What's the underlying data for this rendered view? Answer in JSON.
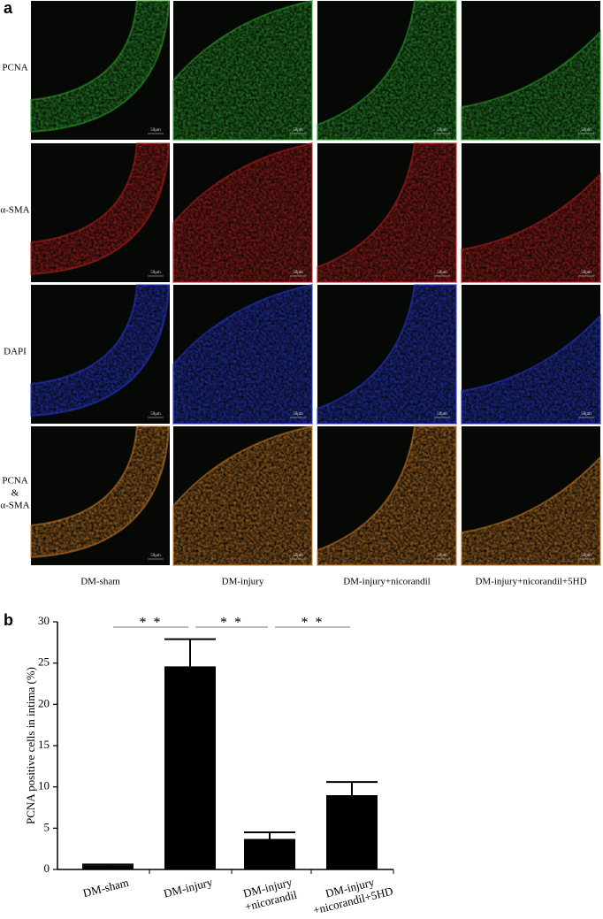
{
  "panel_a": {
    "label": "a",
    "rows": [
      [
        "PCNA"
      ],
      [
        "α-SMA"
      ],
      [
        "DAPI"
      ],
      [
        "PCNA",
        "&",
        "α-SMA"
      ]
    ],
    "columns": [
      "DM-sham",
      "DM-injury",
      "DM-injury+nicorandil",
      "DM-injury+nicorandil+5HD"
    ],
    "scale_bar": "50μm"
  },
  "chart_data": {
    "type": "bar",
    "label": "b",
    "ylabel": "PCNA positive cells in intima (%)",
    "categories": [
      [
        "DM-sham"
      ],
      [
        "DM-injury"
      ],
      [
        "DM-injury",
        "+nicorandil"
      ],
      [
        "DM-injury",
        "+nicorandil+5HD"
      ]
    ],
    "values": [
      0.5,
      24.6,
      3.7,
      9.0
    ],
    "errors": [
      0.1,
      3.3,
      0.8,
      1.6
    ],
    "color": "#000000",
    "ylim": [
      0,
      30
    ],
    "yticks": [
      0,
      5,
      10,
      15,
      20,
      25,
      30
    ],
    "significance": [
      "* *",
      "* *",
      "* *"
    ]
  }
}
